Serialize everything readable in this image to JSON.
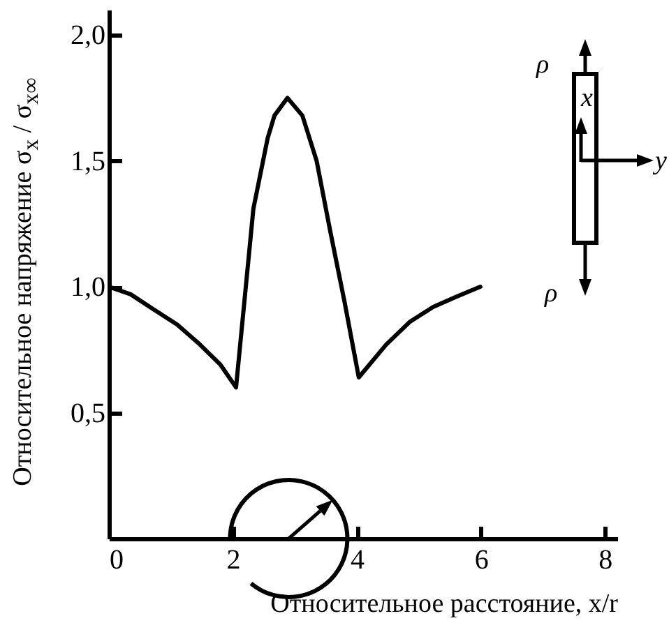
{
  "chart_data": {
    "type": "line",
    "xlabel": "Относительное расстояние, x/r",
    "ylabel": "Относительное напряжение σ$_{x}$ / σ$_{x∞}$",
    "x": [
      0,
      0.35,
      0.72,
      1.1,
      1.47,
      1.8,
      2.05,
      2.33,
      2.56,
      2.67,
      2.88,
      3.12,
      3.35,
      3.57,
      3.8,
      4.03,
      4.47,
      4.85,
      5.23,
      5.6,
      5.99
    ],
    "series": [
      {
        "color": "#000000",
        "values": [
          1.0,
          0.97,
          0.91,
          0.85,
          0.77,
          0.69,
          0.6,
          1.31,
          1.59,
          1.68,
          1.75,
          1.68,
          1.5,
          1.22,
          0.94,
          0.64,
          0.77,
          0.86,
          0.92,
          0.96,
          1.0
        ]
      }
    ],
    "xlim": [
      0,
      8.2
    ],
    "xticks": [
      0,
      2,
      4,
      6,
      8
    ],
    "ylim": [
      0,
      2.1
    ],
    "yticks": [
      {
        "value": 0.5,
        "label": "0,5"
      },
      {
        "value": 1.0,
        "label": "1,0"
      },
      {
        "value": 1.5,
        "label": "1,5"
      },
      {
        "value": 2.0,
        "label": "2,0"
      }
    ],
    "grid": false,
    "marker": "none",
    "line_style": "solid",
    "annotations": [
      "ρ",
      "x",
      "y",
      "ρ"
    ]
  }
}
